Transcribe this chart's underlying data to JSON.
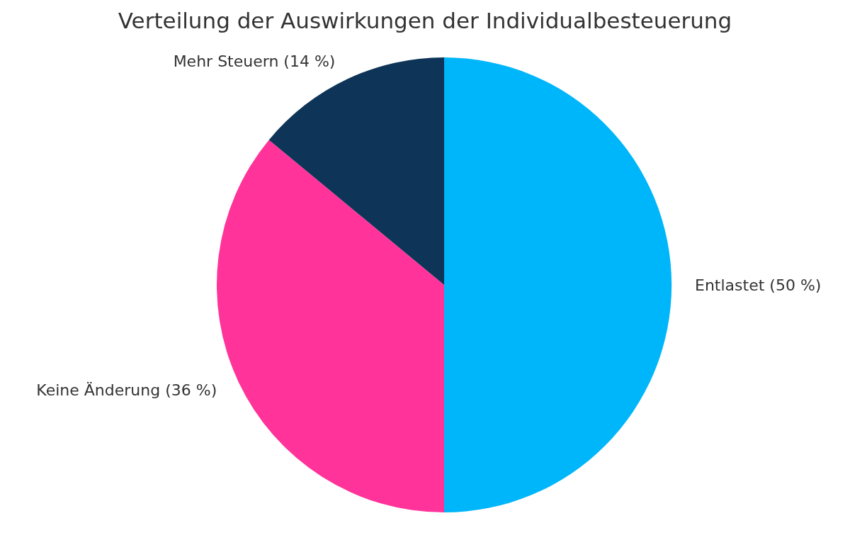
{
  "chart_data": {
    "type": "pie",
    "title": "Verteilung der Auswirkungen der Individualbesteuerung",
    "categories": [
      "Entlastet (50 %)",
      "Keine Änderung (36 %)",
      "Mehr Steuern (14 %)"
    ],
    "values": [
      50,
      36,
      14
    ],
    "colors": [
      "#00b6fa",
      "#ff3399",
      "#0e3457"
    ],
    "legend": false
  }
}
